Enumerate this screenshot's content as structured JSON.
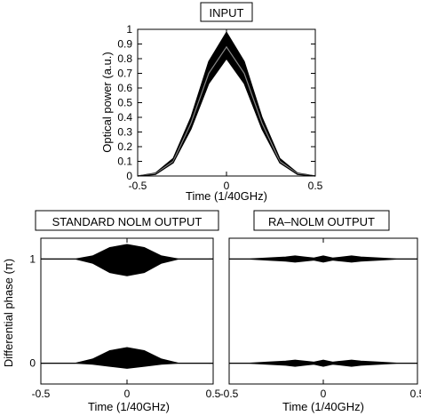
{
  "chart_data": [
    {
      "type": "line",
      "title": "INPUT",
      "xlabel": "Time  (1/40GHz)",
      "ylabel": "Optical power  (a.u.)",
      "xlim": [
        -0.5,
        0.5
      ],
      "ylim": [
        0,
        1
      ],
      "xticks": [
        "-0.5",
        "0",
        "0.5"
      ],
      "yticks": [
        "0",
        "0.1",
        "0.2",
        "0.3",
        "0.4",
        "0.5",
        "0.6",
        "0.7",
        "0.8",
        "0.9",
        "1"
      ],
      "x": [
        -0.5,
        -0.4,
        -0.3,
        -0.2,
        -0.1,
        0,
        0.1,
        0.2,
        0.3,
        0.4,
        0.5
      ],
      "series": [
        {
          "values": [
            0.0,
            0.02,
            0.12,
            0.4,
            0.78,
            0.98,
            0.78,
            0.4,
            0.12,
            0.02,
            0.0
          ]
        },
        {
          "values": [
            0.0,
            0.015,
            0.1,
            0.36,
            0.7,
            0.88,
            0.7,
            0.36,
            0.1,
            0.015,
            0.0
          ]
        },
        {
          "values": [
            0.0,
            0.01,
            0.09,
            0.32,
            0.63,
            0.8,
            0.63,
            0.32,
            0.09,
            0.01,
            0.0
          ]
        }
      ],
      "grid": false
    },
    {
      "type": "line",
      "title": "STANDARD NOLM OUTPUT",
      "xlabel": "Time  (1/40GHz)",
      "ylabel": "Differential phase  (π)",
      "xlim": [
        -0.5,
        0.5
      ],
      "ylim": [
        -0.2,
        1.2
      ],
      "xticks": [
        "-0.5",
        "0",
        "0.5"
      ],
      "yticks": [
        "0",
        "1"
      ],
      "x": [
        -0.5,
        -0.4,
        -0.3,
        -0.2,
        -0.1,
        0,
        0.1,
        0.2,
        0.3,
        0.4,
        0.5
      ],
      "series": [
        {
          "values": [
            1.0,
            1.0,
            1.0,
            1.03,
            1.11,
            1.14,
            1.11,
            1.03,
            1.0,
            1.0,
            1.0
          ]
        },
        {
          "values": [
            1.0,
            1.0,
            1.0,
            0.96,
            0.87,
            0.84,
            0.87,
            0.96,
            1.0,
            1.0,
            1.0
          ]
        },
        {
          "values": [
            0.0,
            0.0,
            0.0,
            0.04,
            0.12,
            0.15,
            0.12,
            0.04,
            0.0,
            0.0,
            0.0
          ]
        },
        {
          "values": [
            0.0,
            0.0,
            0.0,
            -0.01,
            -0.03,
            -0.05,
            -0.03,
            -0.01,
            0.0,
            0.0,
            0.0
          ]
        }
      ],
      "grid": false
    },
    {
      "type": "line",
      "title": "RA–NOLM OUTPUT",
      "xlabel": "Time  (1/40GHz)",
      "ylabel": "",
      "xlim": [
        -0.5,
        0.5
      ],
      "ylim": [
        -0.2,
        1.2
      ],
      "xticks": [
        "-0.5",
        "0",
        "0.5"
      ],
      "yticks": [],
      "x": [
        -0.5,
        -0.4,
        -0.3,
        -0.2,
        -0.15,
        -0.1,
        -0.05,
        0,
        0.05,
        0.1,
        0.15,
        0.2,
        0.3,
        0.4,
        0.5
      ],
      "series": [
        {
          "values": [
            1.0,
            1.0,
            1.01,
            1.02,
            1.03,
            1.02,
            1.01,
            1.03,
            1.01,
            1.02,
            1.03,
            1.02,
            1.01,
            1.0,
            1.0
          ]
        },
        {
          "values": [
            1.0,
            1.0,
            0.99,
            0.98,
            0.97,
            0.98,
            0.99,
            0.97,
            0.99,
            0.98,
            0.97,
            0.98,
            0.99,
            1.0,
            1.0
          ]
        },
        {
          "values": [
            0.0,
            0.0,
            0.01,
            0.02,
            0.03,
            0.02,
            0.01,
            0.03,
            0.01,
            0.02,
            0.03,
            0.02,
            0.01,
            0.0,
            0.0
          ]
        },
        {
          "values": [
            0.0,
            0.0,
            -0.01,
            -0.02,
            -0.03,
            -0.02,
            -0.01,
            -0.03,
            -0.01,
            -0.02,
            -0.03,
            -0.02,
            -0.01,
            0.0,
            0.0
          ]
        }
      ],
      "grid": false
    }
  ]
}
